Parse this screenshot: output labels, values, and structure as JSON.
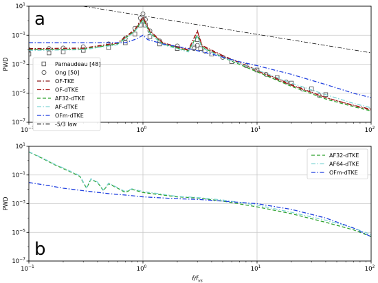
{
  "chart_data": [
    {
      "type": "line",
      "panel_label": "a",
      "xscale": "log",
      "yscale": "log",
      "xlim": [
        0.1,
        100
      ],
      "ylim": [
        1e-07,
        10
      ],
      "xticks": [
        {
          "v": 0.1,
          "b": "10",
          "e": "−1"
        },
        {
          "v": 1,
          "b": "10",
          "e": "0"
        },
        {
          "v": 10,
          "b": "10",
          "e": "1"
        },
        {
          "v": 100,
          "b": "10",
          "e": "2"
        }
      ],
      "yticks": [
        {
          "v": 1e-07,
          "b": "10",
          "e": "−7"
        },
        {
          "v": 1e-05,
          "b": "10",
          "e": "−5"
        },
        {
          "v": 0.001,
          "b": "10",
          "e": "−3"
        },
        {
          "v": 0.1,
          "b": "10",
          "e": "−1"
        },
        {
          "v": 10,
          "b": "10",
          "e": "1"
        }
      ],
      "ylabel": "PWD",
      "xlabel": "",
      "grid": true,
      "legend_position": "left",
      "series": [
        {
          "name": "Parnaudeau [48]",
          "style": "square",
          "color": "#555555",
          "points": [
            [
              0.1,
              0.005
            ],
            [
              0.15,
              0.006
            ],
            [
              0.2,
              0.007
            ],
            [
              0.3,
              0.009
            ],
            [
              0.5,
              0.014
            ],
            [
              0.7,
              0.03
            ],
            [
              0.85,
              0.12
            ],
            [
              0.95,
              0.5
            ],
            [
              1.0,
              1.0
            ],
            [
              1.05,
              0.5
            ],
            [
              1.15,
              0.08
            ],
            [
              1.4,
              0.025
            ],
            [
              2.0,
              0.012
            ],
            [
              2.8,
              0.015
            ],
            [
              3.0,
              0.05
            ],
            [
              3.2,
              0.012
            ],
            [
              4.0,
              0.005
            ],
            [
              6.0,
              0.0015
            ],
            [
              10,
              0.0004
            ],
            [
              15,
              0.00012
            ],
            [
              20,
              5e-05
            ],
            [
              30,
              2e-05
            ],
            [
              40,
              8e-06
            ]
          ]
        },
        {
          "name": "Ong [50]",
          "style": "circle",
          "color": "#555555",
          "points": [
            [
              0.1,
              0.01
            ],
            [
              0.15,
              0.012
            ],
            [
              0.2,
              0.013
            ],
            [
              0.3,
              0.016
            ],
            [
              0.5,
              0.025
            ],
            [
              0.7,
              0.06
            ],
            [
              0.85,
              0.3
            ],
            [
              0.95,
              1.5
            ],
            [
              1.0,
              3.0
            ],
            [
              1.05,
              1.2
            ],
            [
              1.15,
              0.2
            ],
            [
              1.4,
              0.04
            ],
            [
              2.0,
              0.018
            ],
            [
              2.8,
              0.012
            ],
            [
              3.0,
              0.02
            ],
            [
              3.5,
              0.008
            ],
            [
              5.0,
              0.003
            ],
            [
              8.0,
              0.0008
            ],
            [
              12,
              0.0002
            ],
            [
              18,
              6e-05
            ],
            [
              25,
              2e-05
            ],
            [
              35,
              7e-06
            ]
          ]
        },
        {
          "name": "OF-TKE",
          "style": "dashdot",
          "color": "#8b1a1a",
          "points": [
            [
              0.1,
              0.012
            ],
            [
              0.3,
              0.013
            ],
            [
              0.6,
              0.03
            ],
            [
              0.85,
              0.25
            ],
            [
              1.0,
              1.8
            ],
            [
              1.15,
              0.2
            ],
            [
              1.5,
              0.03
            ],
            [
              2.5,
              0.01
            ],
            [
              3.0,
              0.2
            ],
            [
              3.3,
              0.02
            ],
            [
              5,
              0.004
            ],
            [
              10,
              0.0004
            ],
            [
              20,
              4e-05
            ],
            [
              40,
              5e-06
            ],
            [
              70,
              1.5e-06
            ],
            [
              100,
              8e-07
            ]
          ]
        },
        {
          "name": "OF-dTKE",
          "style": "dashdot",
          "color": "#b22222",
          "points": [
            [
              0.1,
              0.011
            ],
            [
              0.3,
              0.012
            ],
            [
              0.6,
              0.028
            ],
            [
              0.85,
              0.22
            ],
            [
              1.0,
              1.5
            ],
            [
              1.15,
              0.18
            ],
            [
              1.5,
              0.028
            ],
            [
              2.5,
              0.009
            ],
            [
              3.0,
              0.18
            ],
            [
              3.3,
              0.018
            ],
            [
              5,
              0.0035
            ],
            [
              10,
              0.00035
            ],
            [
              20,
              3.5e-05
            ],
            [
              40,
              5e-06
            ],
            [
              70,
              1.4e-06
            ],
            [
              100,
              7e-07
            ]
          ]
        },
        {
          "name": "AF32-dTKE",
          "style": "dash",
          "color": "#2ca02c",
          "points": [
            [
              0.1,
              0.01
            ],
            [
              0.3,
              0.011
            ],
            [
              0.6,
              0.025
            ],
            [
              0.85,
              0.2
            ],
            [
              1.0,
              1.2
            ],
            [
              1.15,
              0.15
            ],
            [
              1.5,
              0.025
            ],
            [
              2.5,
              0.008
            ],
            [
              3.0,
              0.1
            ],
            [
              3.3,
              0.015
            ],
            [
              5,
              0.003
            ],
            [
              10,
              0.0003
            ],
            [
              20,
              3e-05
            ],
            [
              40,
              4e-06
            ],
            [
              70,
              1.2e-06
            ],
            [
              100,
              6e-07
            ]
          ]
        },
        {
          "name": "AF-dTKE",
          "style": "dashdot",
          "color": "#7fd4d4",
          "points": [
            [
              0.1,
              0.009
            ],
            [
              0.3,
              0.01
            ],
            [
              0.6,
              0.022
            ],
            [
              0.85,
              0.18
            ],
            [
              1.0,
              1.0
            ],
            [
              1.15,
              0.13
            ],
            [
              1.5,
              0.022
            ],
            [
              2.5,
              0.007
            ],
            [
              3.0,
              0.08
            ],
            [
              3.3,
              0.013
            ],
            [
              5,
              0.003
            ],
            [
              10,
              0.0004
            ],
            [
              20,
              5e-05
            ],
            [
              40,
              8e-06
            ],
            [
              70,
              2e-06
            ],
            [
              100,
              1e-06
            ]
          ]
        },
        {
          "name": "OFm-dTKE",
          "style": "dashdot",
          "color": "#1f3fdf",
          "points": [
            [
              0.1,
              0.03
            ],
            [
              0.2,
              0.03
            ],
            [
              0.4,
              0.03
            ],
            [
              0.7,
              0.03
            ],
            [
              0.9,
              0.06
            ],
            [
              1.0,
              0.1
            ],
            [
              1.1,
              0.05
            ],
            [
              1.5,
              0.025
            ],
            [
              2.5,
              0.012
            ],
            [
              4,
              0.005
            ],
            [
              7,
              0.0015
            ],
            [
              10,
              0.0008
            ],
            [
              20,
              0.0002
            ],
            [
              40,
              4e-05
            ],
            [
              70,
              1e-05
            ],
            [
              100,
              5e-06
            ]
          ]
        },
        {
          "name": "-5/3 law",
          "style": "dashdot",
          "color": "#000000",
          "points": [
            [
              0.3,
              10
            ],
            [
              100,
              0.0061
            ]
          ]
        }
      ]
    },
    {
      "type": "line",
      "panel_label": "b",
      "xscale": "log",
      "yscale": "log",
      "xlim": [
        0.1,
        100
      ],
      "ylim": [
        1e-07,
        10
      ],
      "xticks": [
        {
          "v": 0.1,
          "b": "10",
          "e": "−1"
        },
        {
          "v": 1,
          "b": "10",
          "e": "0"
        },
        {
          "v": 10,
          "b": "10",
          "e": "1"
        },
        {
          "v": 100,
          "b": "10",
          "e": "2"
        }
      ],
      "yticks": [
        {
          "v": 1e-07,
          "b": "10",
          "e": "−7"
        },
        {
          "v": 1e-05,
          "b": "10",
          "e": "−5"
        },
        {
          "v": 0.001,
          "b": "10",
          "e": "−3"
        },
        {
          "v": 0.1,
          "b": "10",
          "e": "−1"
        },
        {
          "v": 10,
          "b": "10",
          "e": "1"
        }
      ],
      "ylabel": "PWD",
      "xlabel": "f/f",
      "xlabel_sub": "vs",
      "grid": true,
      "legend_position": "top-right",
      "series": [
        {
          "name": "AF32-dTKE",
          "style": "dash",
          "color": "#2ca02c",
          "points": [
            [
              0.1,
              4.0
            ],
            [
              0.13,
              1.5
            ],
            [
              0.17,
              0.5
            ],
            [
              0.22,
              0.2
            ],
            [
              0.28,
              0.08
            ],
            [
              0.32,
              0.012
            ],
            [
              0.35,
              0.05
            ],
            [
              0.4,
              0.03
            ],
            [
              0.45,
              0.008
            ],
            [
              0.5,
              0.025
            ],
            [
              0.6,
              0.012
            ],
            [
              0.7,
              0.006
            ],
            [
              0.8,
              0.01
            ],
            [
              1.0,
              0.006
            ],
            [
              1.5,
              0.004
            ],
            [
              2,
              0.003
            ],
            [
              3,
              0.0025
            ],
            [
              5,
              0.0015
            ],
            [
              10,
              0.0006
            ],
            [
              20,
              0.0002
            ],
            [
              40,
              5e-05
            ],
            [
              70,
              1.5e-05
            ],
            [
              100,
              5e-06
            ]
          ]
        },
        {
          "name": "AF64-dTKE",
          "style": "dashdot",
          "color": "#7fd4d4",
          "points": [
            [
              0.1,
              4.2
            ],
            [
              0.13,
              1.6
            ],
            [
              0.17,
              0.55
            ],
            [
              0.22,
              0.22
            ],
            [
              0.28,
              0.09
            ],
            [
              0.32,
              0.013
            ],
            [
              0.35,
              0.055
            ],
            [
              0.4,
              0.032
            ],
            [
              0.45,
              0.009
            ],
            [
              0.5,
              0.027
            ],
            [
              0.6,
              0.013
            ],
            [
              0.7,
              0.007
            ],
            [
              0.8,
              0.011
            ],
            [
              1.0,
              0.007
            ],
            [
              1.5,
              0.0045
            ],
            [
              2,
              0.0032
            ],
            [
              3,
              0.0027
            ],
            [
              5,
              0.0018
            ],
            [
              10,
              0.0008
            ],
            [
              20,
              0.00025
            ],
            [
              40,
              7e-05
            ],
            [
              70,
              2e-05
            ],
            [
              100,
              7e-06
            ]
          ]
        },
        {
          "name": "OFm-dTKE",
          "style": "dashdot",
          "color": "#1f3fdf",
          "points": [
            [
              0.1,
              0.03
            ],
            [
              0.15,
              0.018
            ],
            [
              0.2,
              0.012
            ],
            [
              0.3,
              0.008
            ],
            [
              0.5,
              0.005
            ],
            [
              0.7,
              0.004
            ],
            [
              1.0,
              0.003
            ],
            [
              1.5,
              0.0025
            ],
            [
              2,
              0.0022
            ],
            [
              3,
              0.002
            ],
            [
              5,
              0.0015
            ],
            [
              10,
              0.001
            ],
            [
              20,
              0.0004
            ],
            [
              40,
              0.0001
            ],
            [
              70,
              2e-05
            ],
            [
              100,
              5e-06
            ]
          ]
        }
      ]
    }
  ]
}
